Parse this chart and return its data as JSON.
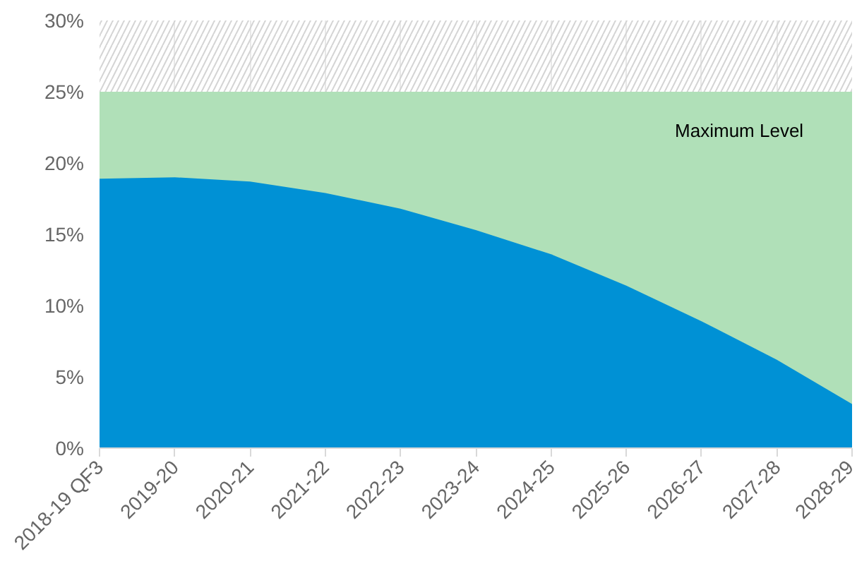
{
  "chart_data": {
    "type": "area",
    "categories": [
      "2018-19 QF3",
      "2019-20",
      "2020-21",
      "2021-22",
      "2022-23",
      "2023-24",
      "2024-25",
      "2025-26",
      "2026-27",
      "2027-28",
      "2028-29"
    ],
    "series": [
      {
        "name": "Maximum Level",
        "color": "#b0e0b8",
        "values": [
          25,
          25,
          25,
          25,
          25,
          25,
          25,
          25,
          25,
          25,
          25
        ]
      },
      {
        "color": "#0091d5",
        "values": [
          18.9,
          19.0,
          18.7,
          17.9,
          16.8,
          15.3,
          13.6,
          11.4,
          8.9,
          6.2,
          3.1
        ]
      }
    ],
    "bands": [
      {
        "axis": "y",
        "from": 25,
        "to": 30,
        "color": "#d4d4d4"
      }
    ],
    "ylim": [
      0,
      30
    ],
    "yticks": [
      {
        "value": 0,
        "label": "0%"
      },
      {
        "value": 5,
        "label": "5%"
      },
      {
        "value": 10,
        "label": "10%"
      },
      {
        "value": 15,
        "label": "15%"
      },
      {
        "value": 20,
        "label": "20%"
      },
      {
        "value": 25,
        "label": "25%"
      },
      {
        "value": 30,
        "label": "30%"
      }
    ],
    "grid": "x"
  }
}
